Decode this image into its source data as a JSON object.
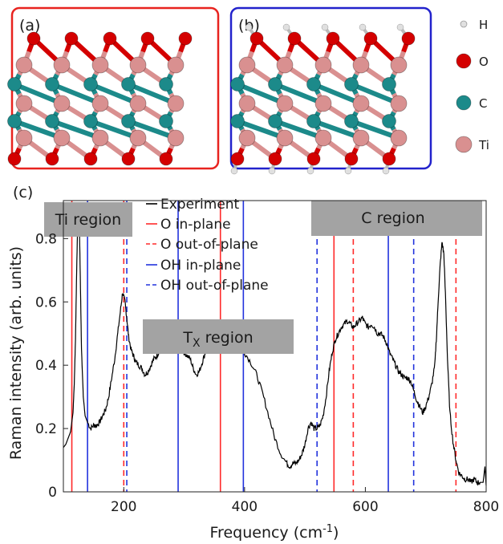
{
  "panels": {
    "a_label": "(a)",
    "b_label": "(b)",
    "c_label": "(c)",
    "a_border_color": "#e8231f",
    "b_border_color": "#2222cc"
  },
  "atom_legend": [
    {
      "symbol": "H",
      "color": "#e0e0e0"
    },
    {
      "symbol": "O",
      "color": "#d40000"
    },
    {
      "symbol": "C",
      "color": "#1c8a8a"
    },
    {
      "symbol": "Ti",
      "color": "#d99090"
    }
  ],
  "regions": {
    "ti": "Ti region",
    "tx_main": "T",
    "tx_sub": "X",
    "tx_rest": " region",
    "c": "C region"
  },
  "legend": [
    {
      "label": "Experiment",
      "color": "#000000",
      "style": "solid"
    },
    {
      "label": "O in-plane",
      "color": "#ff2a2a",
      "style": "solid"
    },
    {
      "label": "O out-of-plane",
      "color": "#ff2a2a",
      "style": "dashed"
    },
    {
      "label": "OH in-plane",
      "color": "#2233dd",
      "style": "solid"
    },
    {
      "label": "OH out-of-plane",
      "color": "#2233dd",
      "style": "dashed"
    }
  ],
  "chart_data": {
    "type": "line",
    "xlabel": "Frequency (cm",
    "xlabel_sup": "-1",
    "xlabel_end": ")",
    "ylabel": "Raman intensity (arb. units)",
    "xlim": [
      100,
      800
    ],
    "ylim": [
      0,
      0.92
    ],
    "xticks": [
      200,
      400,
      600,
      800
    ],
    "yticks": [
      0,
      0.2,
      0.4,
      0.6,
      0.8
    ],
    "grid": false,
    "experiment": {
      "x": [
        100,
        104,
        108,
        112,
        116,
        118,
        120,
        122,
        124,
        126,
        128,
        130,
        133,
        136,
        140,
        145,
        150,
        155,
        160,
        165,
        170,
        175,
        180,
        185,
        190,
        195,
        198,
        202,
        205,
        208,
        212,
        216,
        220,
        225,
        230,
        235,
        240,
        245,
        250,
        255,
        260,
        265,
        270,
        275,
        280,
        285,
        290,
        295,
        300,
        305,
        310,
        315,
        320,
        325,
        330,
        335,
        340,
        345,
        350,
        355,
        360,
        365,
        370,
        375,
        380,
        385,
        390,
        395,
        400,
        410,
        420,
        430,
        440,
        450,
        460,
        470,
        475,
        480,
        485,
        490,
        495,
        500,
        505,
        510,
        515,
        520,
        525,
        530,
        535,
        540,
        545,
        550,
        555,
        560,
        565,
        570,
        575,
        580,
        585,
        590,
        595,
        600,
        605,
        610,
        615,
        620,
        625,
        630,
        635,
        640,
        645,
        650,
        655,
        660,
        665,
        670,
        675,
        680,
        685,
        690,
        695,
        700,
        705,
        710,
        715,
        718,
        721,
        724,
        727,
        730,
        733,
        736,
        740,
        745,
        750,
        755,
        760,
        765,
        770,
        775,
        780,
        785,
        790,
        795,
        798,
        800
      ],
      "y": [
        0.14,
        0.15,
        0.17,
        0.19,
        0.25,
        0.34,
        0.48,
        0.7,
        0.88,
        0.9,
        0.68,
        0.45,
        0.3,
        0.24,
        0.22,
        0.2,
        0.21,
        0.21,
        0.22,
        0.24,
        0.26,
        0.3,
        0.36,
        0.42,
        0.5,
        0.58,
        0.63,
        0.6,
        0.55,
        0.49,
        0.45,
        0.43,
        0.41,
        0.4,
        0.39,
        0.37,
        0.38,
        0.4,
        0.42,
        0.43,
        0.45,
        0.46,
        0.47,
        0.46,
        0.46,
        0.47,
        0.47,
        0.45,
        0.44,
        0.43,
        0.42,
        0.39,
        0.37,
        0.38,
        0.41,
        0.44,
        0.46,
        0.48,
        0.5,
        0.5,
        0.49,
        0.5,
        0.5,
        0.49,
        0.48,
        0.47,
        0.46,
        0.45,
        0.44,
        0.41,
        0.37,
        0.31,
        0.24,
        0.17,
        0.12,
        0.09,
        0.08,
        0.09,
        0.09,
        0.1,
        0.12,
        0.15,
        0.2,
        0.22,
        0.2,
        0.2,
        0.21,
        0.24,
        0.3,
        0.38,
        0.44,
        0.48,
        0.5,
        0.52,
        0.53,
        0.54,
        0.53,
        0.52,
        0.53,
        0.54,
        0.55,
        0.53,
        0.52,
        0.53,
        0.52,
        0.5,
        0.5,
        0.49,
        0.47,
        0.44,
        0.42,
        0.4,
        0.38,
        0.37,
        0.36,
        0.36,
        0.35,
        0.32,
        0.29,
        0.27,
        0.25,
        0.27,
        0.3,
        0.34,
        0.4,
        0.5,
        0.62,
        0.72,
        0.79,
        0.75,
        0.6,
        0.42,
        0.25,
        0.16,
        0.1,
        0.06,
        0.05,
        0.04,
        0.04,
        0.03,
        0.04,
        0.03,
        0.03,
        0.03,
        0.08,
        0.02
      ]
    },
    "vlines": [
      {
        "x": 114,
        "kind": "O in-plane"
      },
      {
        "x": 360,
        "kind": "O in-plane"
      },
      {
        "x": 548,
        "kind": "O in-plane"
      },
      {
        "x": 200,
        "kind": "O out-of-plane"
      },
      {
        "x": 580,
        "kind": "O out-of-plane"
      },
      {
        "x": 750,
        "kind": "O out-of-plane"
      },
      {
        "x": 140,
        "kind": "OH in-plane"
      },
      {
        "x": 290,
        "kind": "OH in-plane"
      },
      {
        "x": 398,
        "kind": "OH in-plane"
      },
      {
        "x": 638,
        "kind": "OH in-plane"
      },
      {
        "x": 205,
        "kind": "OH out-of-plane"
      },
      {
        "x": 520,
        "kind": "OH out-of-plane"
      },
      {
        "x": 680,
        "kind": "OH out-of-plane"
      }
    ]
  }
}
